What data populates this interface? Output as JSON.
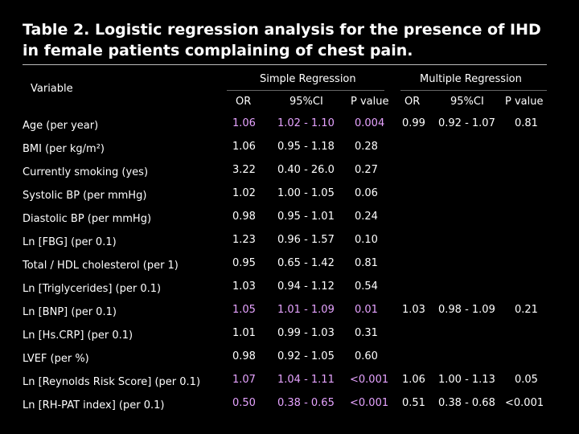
{
  "title": "Table 2. Logistic regression analysis for the presence of IHD in female patients complaining of chest pain.",
  "headers": {
    "variable": "Variable",
    "simple": "Simple Regression",
    "multiple": "Multiple Regression",
    "or": "OR",
    "ci": "95%CI",
    "p": "P value"
  },
  "rows": [
    {
      "var": "Age (per year)",
      "or": "1.06",
      "ci": "1.02 - 1.10",
      "p": "0.004",
      "mor": "0.99",
      "mci": "0.92 - 1.07",
      "mp": "0.81",
      "highlight": true
    },
    {
      "var": "BMI (per kg/m²)",
      "or": "1.06",
      "ci": "0.95 - 1.18",
      "p": "0.28",
      "mor": "",
      "mci": "",
      "mp": "",
      "highlight": false
    },
    {
      "var": "Currently smoking (yes)",
      "or": "3.22",
      "ci": "0.40 - 26.0",
      "p": "0.27",
      "mor": "",
      "mci": "",
      "mp": "",
      "highlight": false
    },
    {
      "var": "Systolic BP (per mmHg)",
      "or": "1.02",
      "ci": "1.00 - 1.05",
      "p": "0.06",
      "mor": "",
      "mci": "",
      "mp": "",
      "highlight": false
    },
    {
      "var": "Diastolic BP (per mmHg)",
      "or": "0.98",
      "ci": "0.95 - 1.01",
      "p": "0.24",
      "mor": "",
      "mci": "",
      "mp": "",
      "highlight": false
    },
    {
      "var": "Ln [FBG] (per 0.1)",
      "or": "1.23",
      "ci": "0.96 - 1.57",
      "p": "0.10",
      "mor": "",
      "mci": "",
      "mp": "",
      "highlight": false
    },
    {
      "var": "Total / HDL cholesterol (per 1)",
      "or": "0.95",
      "ci": "0.65 - 1.42",
      "p": "0.81",
      "mor": "",
      "mci": "",
      "mp": "",
      "highlight": false
    },
    {
      "var": "Ln [Triglycerides] (per 0.1)",
      "or": "1.03",
      "ci": "0.94 - 1.12",
      "p": "0.54",
      "mor": "",
      "mci": "",
      "mp": "",
      "highlight": false
    },
    {
      "var": "Ln [BNP] (per 0.1)",
      "or": "1.05",
      "ci": "1.01 - 1.09",
      "p": "0.01",
      "mor": "1.03",
      "mci": "0.98 - 1.09",
      "mp": "0.21",
      "highlight": true
    },
    {
      "var": "Ln [Hs.CRP] (per 0.1)",
      "or": "1.01",
      "ci": "0.99 - 1.03",
      "p": "0.31",
      "mor": "",
      "mci": "",
      "mp": "",
      "highlight": false
    },
    {
      "var": "LVEF (per %)",
      "or": "0.98",
      "ci": "0.92 - 1.05",
      "p": "0.60",
      "mor": "",
      "mci": "",
      "mp": "",
      "highlight": false
    },
    {
      "var": "Ln [Reynolds Risk Score] (per 0.1)",
      "or": "1.07",
      "ci": "1.04 - 1.11",
      "p": "<0.001",
      "mor": "1.06",
      "mci": "1.00 - 1.13",
      "mp": "0.05",
      "highlight": true
    },
    {
      "var": "Ln [RH-PAT index] (per 0.1)",
      "or": "0.50",
      "ci": "0.38 - 0.65",
      "p": "<0.001",
      "mor": "0.51",
      "mci": "0.38 - 0.68",
      "mp": "<0.001",
      "highlight": true
    }
  ]
}
